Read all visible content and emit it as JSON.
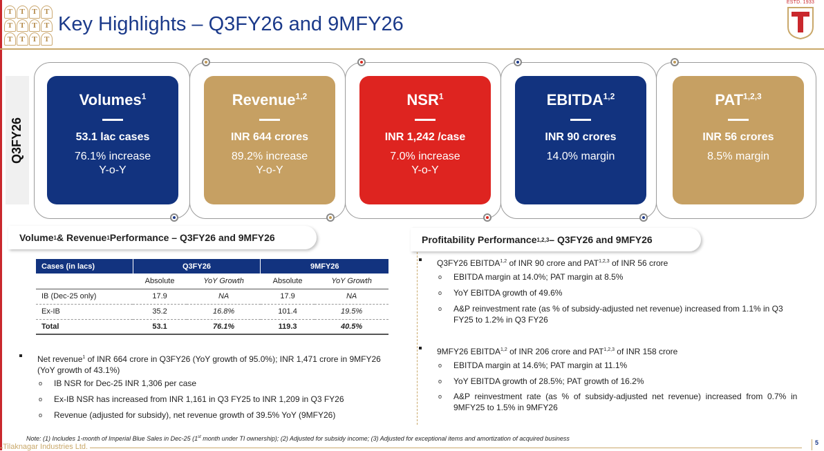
{
  "header": {
    "title": "Key Highlights – Q3FY26 and 9MFY26",
    "brand_estd": "ESTD. 1933",
    "brand_mark": "T"
  },
  "side_tab": "Q3FY26",
  "cards": [
    {
      "title": "Volumes",
      "sup": "1",
      "value": "53.1 lac cases",
      "sub": "76.1% increase\nY-o-Y",
      "color": "#12337f"
    },
    {
      "title": "Revenue",
      "sup": "1,2",
      "value": "INR 644 crores",
      "sub": "89.2% increase\nY-o-Y",
      "color": "#c6a063"
    },
    {
      "title": "NSR",
      "sup": "1",
      "value": "INR 1,242 /case",
      "sub": "7.0% increase\nY-o-Y",
      "color": "#de2420"
    },
    {
      "title": "EBITDA",
      "sup": "1,2",
      "value": "INR 90 crores",
      "sub": "14.0% margin",
      "color": "#12337f"
    },
    {
      "title": "PAT",
      "sup": "1,2,3",
      "value": "INR 56 crores",
      "sub": "8.5% margin",
      "color": "#c6a063"
    }
  ],
  "volume_section": {
    "heading_a": "Volume",
    "heading_b": " & Revenue",
    "heading_c": " Performance – Q3FY26 and 9MFY26",
    "sup": "1"
  },
  "table": {
    "header": [
      "Cases (in lacs)",
      "Q3FY26",
      "9MFY26"
    ],
    "subheader": [
      "Absolute",
      "YoY Growth",
      "Absolute",
      "YoY Growth"
    ],
    "rows": [
      {
        "label": "IB (Dec-25 only)",
        "q_abs": "17.9",
        "q_yoy": "NA",
        "n_abs": "17.9",
        "n_yoy": "NA"
      },
      {
        "label": "Ex-IB",
        "q_abs": "35.2",
        "q_yoy": "16.8%",
        "n_abs": "101.4",
        "n_yoy": "19.5%"
      },
      {
        "label": "Total",
        "q_abs": "53.1",
        "q_yoy": "76.1%",
        "n_abs": "119.3",
        "n_yoy": "40.5%"
      }
    ]
  },
  "volume_bullets": {
    "main_a": "Net revenue",
    "main_sup": "1",
    "main_b": " of INR 664 crore in Q3FY26 (YoY growth of 95.0%); INR 1,471 crore in 9MFY26",
    "main_c": "(YoY growth of 43.1%)",
    "subs": [
      "IB NSR for Dec-25 INR 1,306 per case",
      "Ex-IB NSR has increased from INR 1,161 in Q3 FY25 to INR 1,209 in Q3 FY26",
      "Revenue (adjusted for subsidy), net revenue growth of 39.5% YoY (9MFY26)"
    ]
  },
  "profit_section": {
    "heading_a": "Profitability Performance",
    "sup": "1,2,3",
    "heading_b": " – Q3FY26 and 9MFY26",
    "q3_a": "Q3FY26 EBITDA",
    "q3_sup1": "1,2",
    "q3_b": " of INR 90 crore and PAT",
    "q3_sup2": "1,2,3",
    "q3_c": " of INR 56 crore",
    "q3_subs": [
      "EBITDA margin at 14.0%; PAT margin at 8.5%",
      "YoY EBITDA growth of 49.6%",
      "A&P reinvestment rate (as % of subsidy-adjusted net revenue) increased from 1.1% in Q3",
      "FY25 to 1.2% in Q3 FY26"
    ],
    "nm_a": "9MFY26 EBITDA",
    "nm_sup1": "1,2",
    "nm_b": " of INR 206 crore and PAT",
    "nm_sup2": "1,2,3",
    "nm_c": " of INR 158 crore",
    "nm_subs": [
      "EBITDA margin at 14.6%; PAT margin at 11.1%",
      "YoY EBITDA growth of 28.5%; PAT growth of 16.2%",
      "A&P  reinvestment  rate  (as  %  of  subsidy-adjusted  net  revenue)  increased  from  0.7%  in",
      "9MFY25 to 1.5% in 9MFY26"
    ]
  },
  "footnote": {
    "a": "Note: (1) Includes 1-month of Imperial Blue Sales in Dec-25 (1",
    "sup": "st",
    "b": " month under TI ownership); (2) Adjusted for subsidy income; (3) Adjusted for exceptional items and amortization of acquired business"
  },
  "footer": {
    "company": "Tilaknagar Industries Ltd.",
    "page": "5"
  }
}
